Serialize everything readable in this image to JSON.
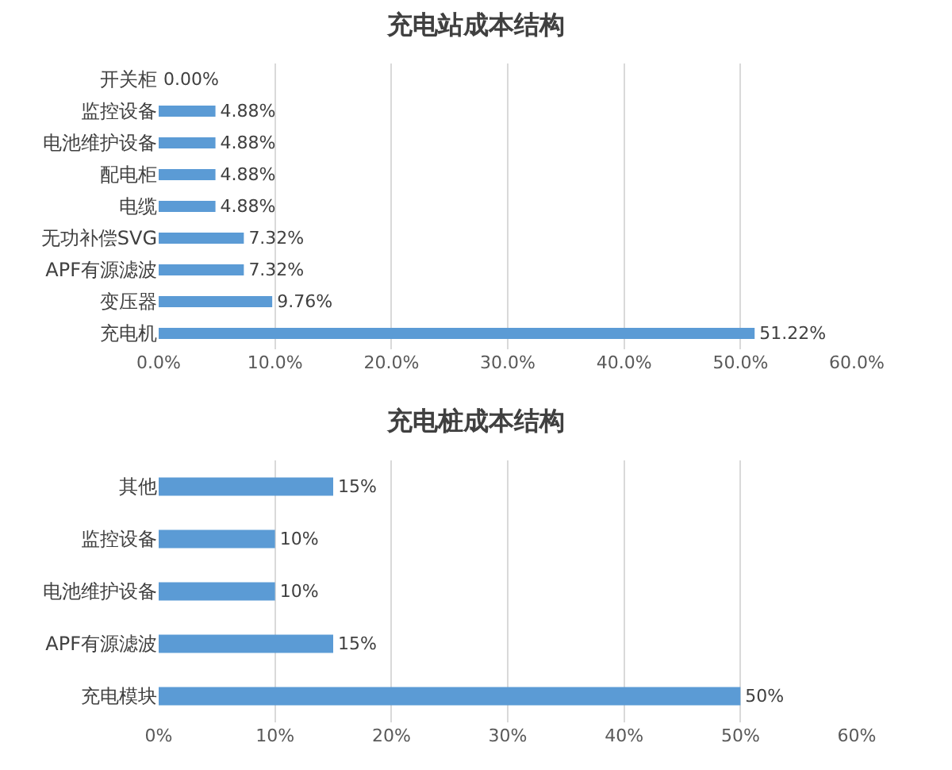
{
  "chart_data": [
    {
      "type": "bar",
      "orientation": "horizontal",
      "title": "充电站成本结构",
      "categories": [
        "开关柜",
        "监控设备",
        "电池维护设备",
        "配电柜",
        "电缆",
        "无功补偿SVG",
        "APF有源滤波",
        "变压器",
        "充电机"
      ],
      "values": [
        0,
        4.88,
        4.88,
        4.88,
        4.88,
        7.32,
        7.32,
        9.76,
        51.22
      ],
      "value_labels": [
        "0.00%",
        "4.88%",
        "4.88%",
        "4.88%",
        "4.88%",
        "7.32%",
        "7.32%",
        "9.76%",
        "51.22%"
      ],
      "color": "#5b9bd5",
      "xlim": [
        0,
        60
      ],
      "xticks": [
        {
          "value": 0,
          "label": "0.0%"
        },
        {
          "value": 10,
          "label": "10.0%"
        },
        {
          "value": 20,
          "label": "20.0%"
        },
        {
          "value": 30,
          "label": "30.0%"
        },
        {
          "value": 40,
          "label": "40.0%"
        },
        {
          "value": 50,
          "label": "50.0%"
        },
        {
          "value": 60,
          "label": "60.0%"
        }
      ],
      "grid": "x"
    },
    {
      "type": "bar",
      "orientation": "horizontal",
      "title": "充电桩成本结构",
      "categories": [
        "其他",
        "监控设备",
        "电池维护设备",
        "APF有源滤波",
        "充电模块"
      ],
      "values": [
        15,
        10,
        10,
        15,
        50
      ],
      "value_labels": [
        "15%",
        "10%",
        "10%",
        "15%",
        "50%"
      ],
      "color": "#5b9bd5",
      "xlim": [
        0,
        60
      ],
      "xticks": [
        {
          "value": 0,
          "label": "0%"
        },
        {
          "value": 10,
          "label": "10%"
        },
        {
          "value": 20,
          "label": "20%"
        },
        {
          "value": 30,
          "label": "30%"
        },
        {
          "value": 40,
          "label": "40%"
        },
        {
          "value": 50,
          "label": "50%"
        },
        {
          "value": 60,
          "label": "60%"
        }
      ],
      "grid": "x"
    }
  ]
}
